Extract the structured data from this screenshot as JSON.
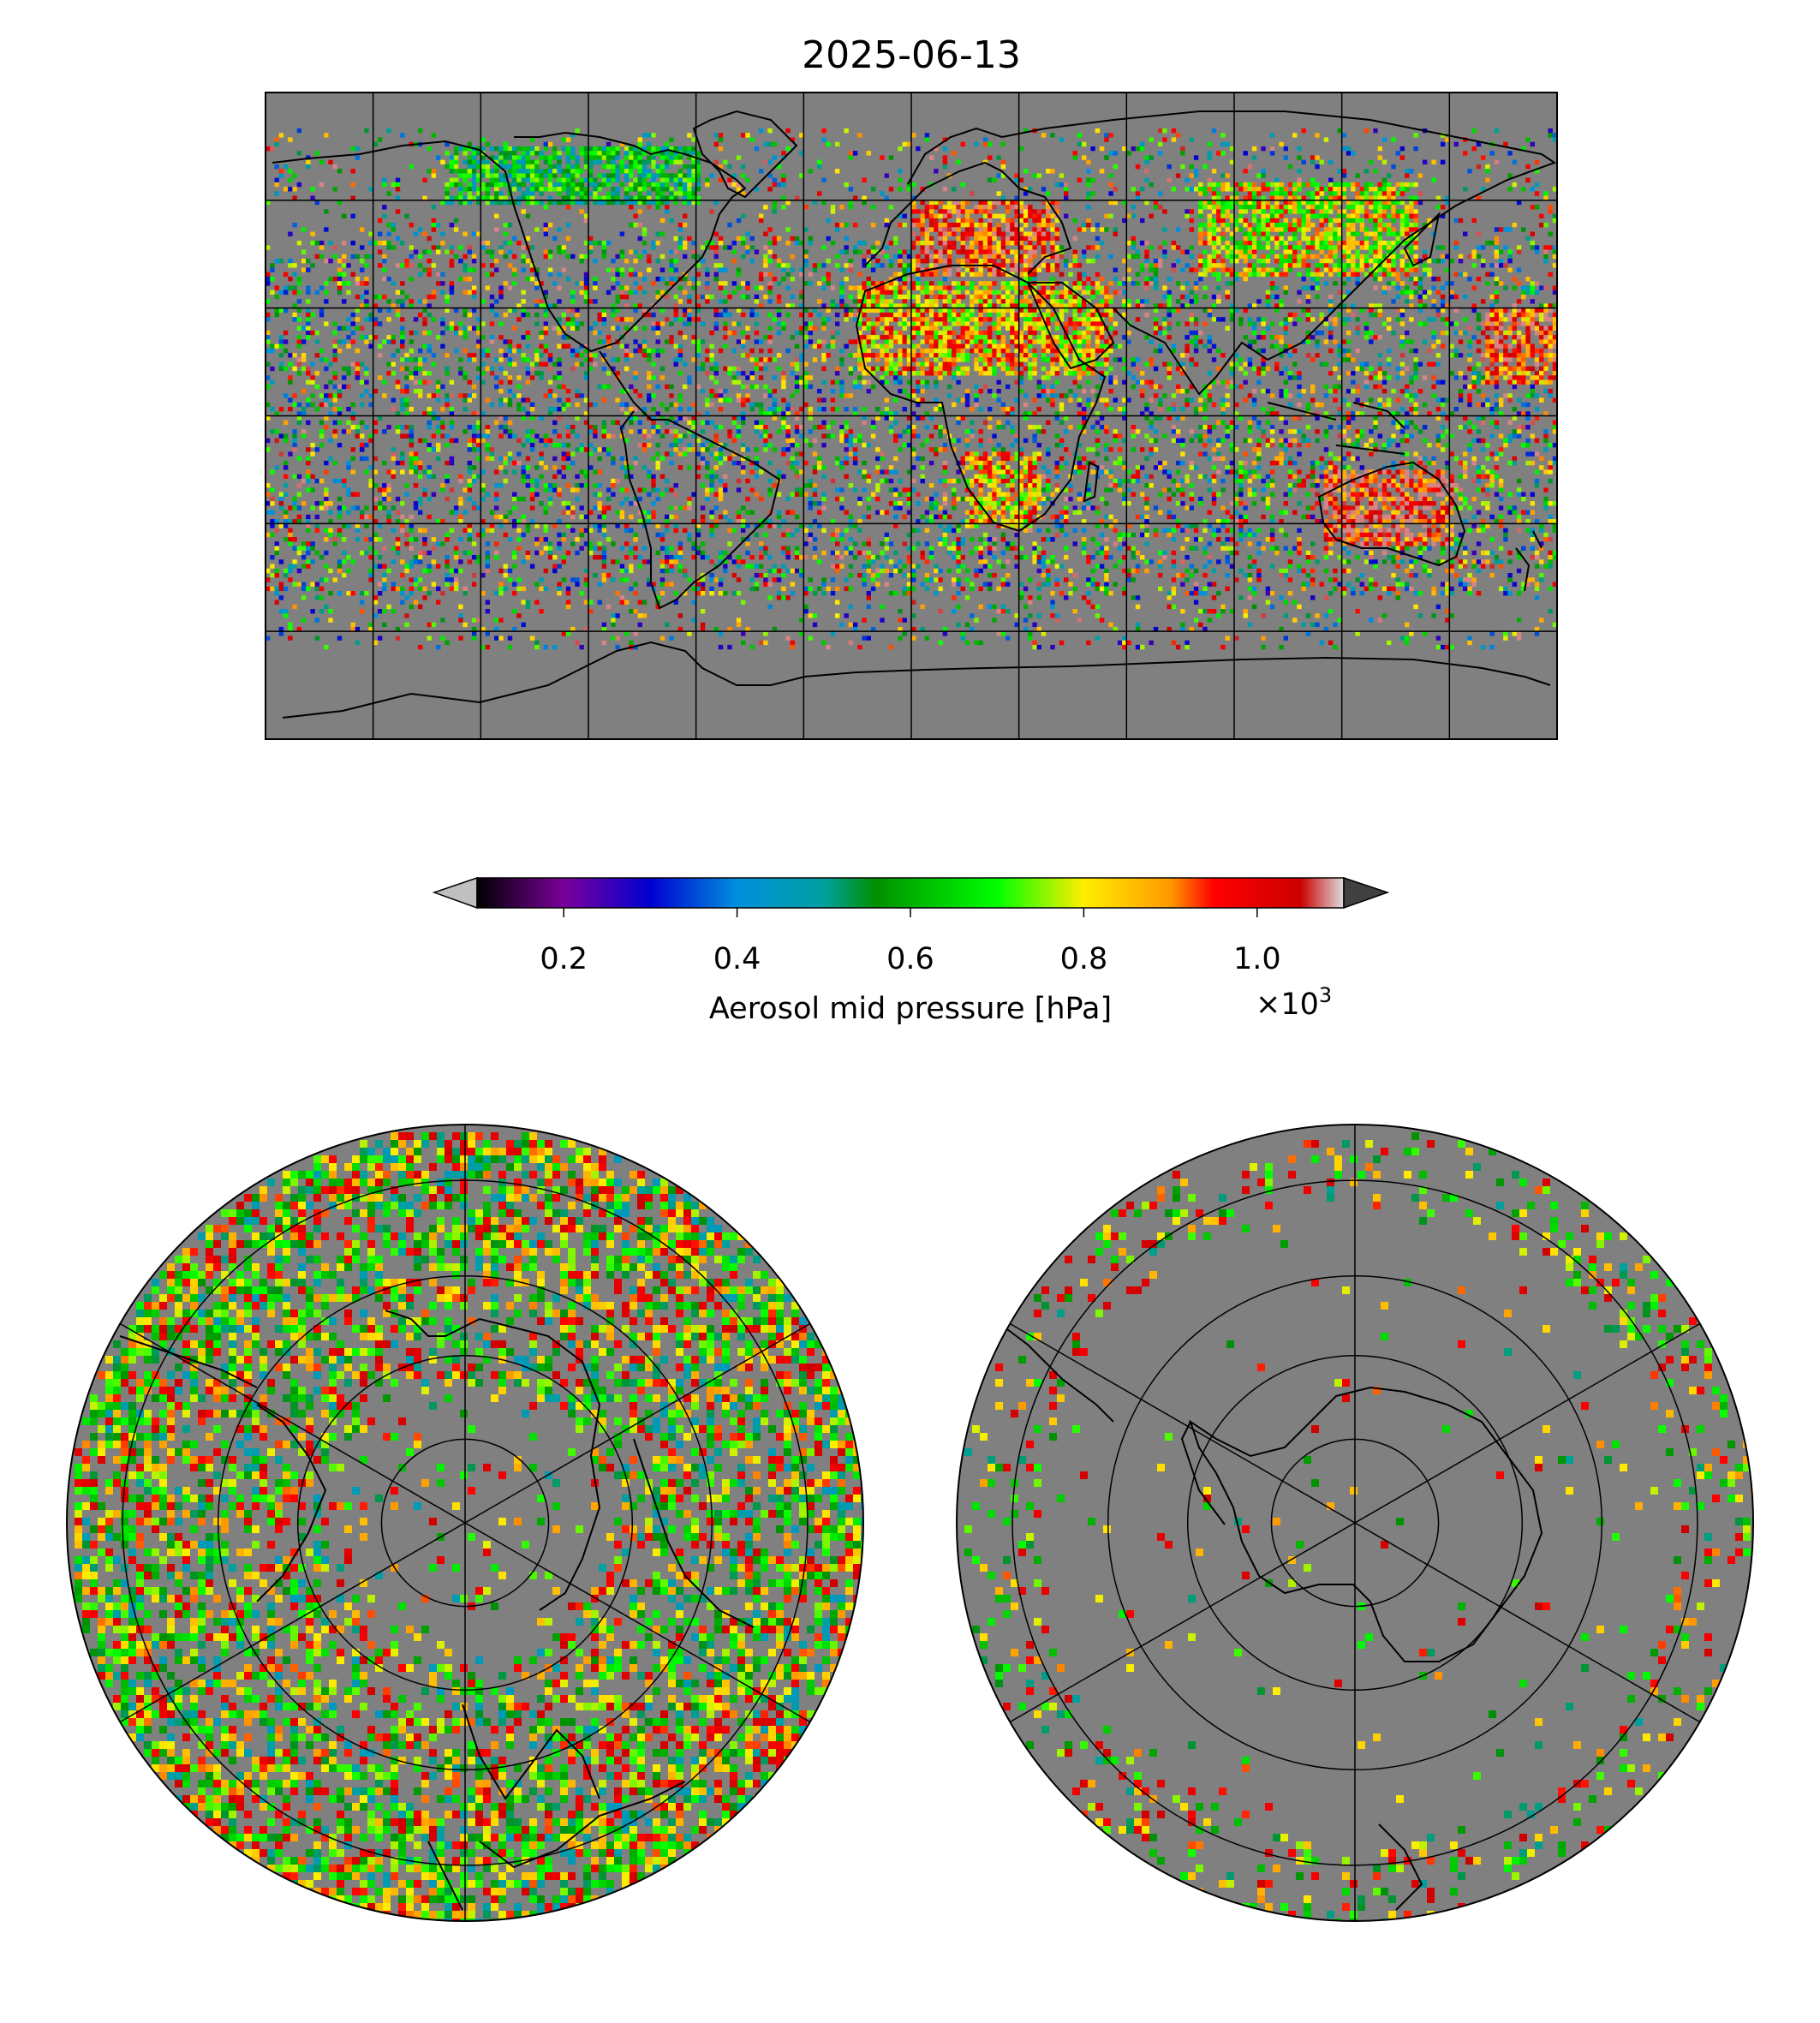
{
  "figure": {
    "title": "2025-06-13",
    "background_color": "#808080",
    "grid_color": "#000000"
  },
  "colorbar": {
    "label": "Aerosol mid pressure [hPa]",
    "multiplier": "×10",
    "multiplier_exponent": "3",
    "ticks": [
      {
        "value": 0.2,
        "label": "0.2"
      },
      {
        "value": 0.4,
        "label": "0.4"
      },
      {
        "value": 0.6,
        "label": "0.6"
      },
      {
        "value": 0.8,
        "label": "0.8"
      },
      {
        "value": 1.0,
        "label": "1.0"
      }
    ],
    "range": [
      0.1,
      1.1
    ],
    "extend": "both",
    "under_color": "#c0c0c0",
    "over_color": "#404040",
    "colormap": [
      {
        "v": 0.1,
        "c": "#000000"
      },
      {
        "v": 0.2,
        "c": "#7a009a"
      },
      {
        "v": 0.3,
        "c": "#0000d0"
      },
      {
        "v": 0.4,
        "c": "#0090dd"
      },
      {
        "v": 0.5,
        "c": "#00a0a0"
      },
      {
        "v": 0.56,
        "c": "#009000"
      },
      {
        "v": 0.7,
        "c": "#00ff00"
      },
      {
        "v": 0.8,
        "c": "#ffee00"
      },
      {
        "v": 0.9,
        "c": "#ff9900"
      },
      {
        "v": 0.95,
        "c": "#ff0000"
      },
      {
        "v": 1.05,
        "c": "#cc0000"
      },
      {
        "v": 1.1,
        "c": "#dddddd"
      }
    ]
  },
  "panels": [
    {
      "name": "global",
      "projection": "plate-carree",
      "extent": [
        -180,
        180,
        -90,
        90
      ],
      "gridlines": {
        "lon_step": 30,
        "lat_step": 30
      }
    },
    {
      "name": "north-polar",
      "projection": "north-polar-stereographic"
    },
    {
      "name": "south-polar",
      "projection": "south-polar-stereographic"
    }
  ],
  "chart_data": {
    "type": "heatmap",
    "title": "2025-06-13",
    "variable": "Aerosol mid pressure",
    "units": "hPa",
    "value_scale": 1000,
    "colorbar_range": [
      100,
      1100
    ],
    "regions": [
      {
        "region": "Saharan / Arabian dust",
        "lon": [
          -15,
          55
        ],
        "lat": [
          12,
          38
        ],
        "level": 0.85
      },
      {
        "region": "Europe",
        "lon": [
          0,
          40
        ],
        "lat": [
          40,
          60
        ],
        "level": 0.95
      },
      {
        "region": "Australia",
        "lon": [
          115,
          150
        ],
        "lat": [
          -35,
          -15
        ],
        "level": 1.0
      },
      {
        "region": "Southern Africa",
        "lon": [
          15,
          35
        ],
        "lat": [
          -30,
          -10
        ],
        "level": 0.85
      },
      {
        "region": "North Pacific",
        "lon": [
          160,
          180
        ],
        "lat": [
          10,
          30
        ],
        "level": 0.95
      },
      {
        "region": "Siberia / Mongolia",
        "lon": [
          80,
          140
        ],
        "lat": [
          40,
          65
        ],
        "level": 0.8
      },
      {
        "region": "Arctic Canada",
        "lon": [
          -130,
          -60
        ],
        "lat": [
          60,
          75
        ],
        "level": 0.6
      }
    ]
  }
}
